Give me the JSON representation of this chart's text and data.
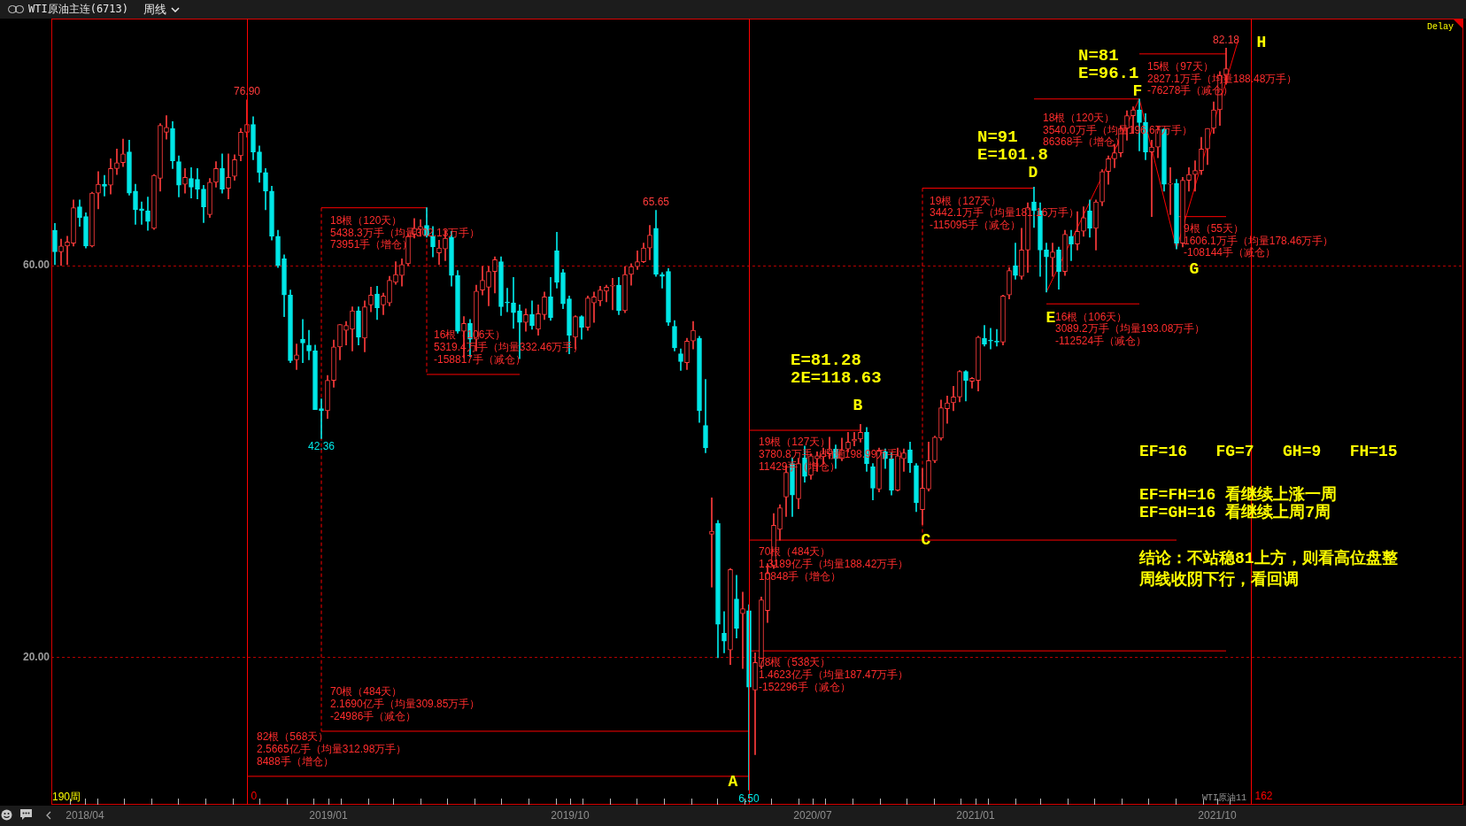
{
  "chart_data": {
    "type": "candlestick",
    "title": "WTI原油主连(6713)",
    "subtitle": "周线",
    "x": [
      "2018-02-26",
      "2018-03-05",
      "2018-03-12",
      "2018-03-19",
      "2018-03-26",
      "2018-04-02",
      "2018-04-09",
      "2018-04-16",
      "2018-04-23",
      "2018-04-30",
      "2018-05-07",
      "2018-05-14",
      "2018-05-21",
      "2018-05-28",
      "2018-06-04",
      "2018-06-11",
      "2018-06-18",
      "2018-06-25",
      "2018-07-02",
      "2018-07-09",
      "2018-07-16",
      "2018-07-23",
      "2018-07-30",
      "2018-08-06",
      "2018-08-13",
      "2018-08-20",
      "2018-08-27",
      "2018-09-03",
      "2018-09-10",
      "2018-09-17",
      "2018-09-24",
      "2018-10-01",
      "2018-10-08",
      "2018-10-15",
      "2018-10-22",
      "2018-10-29",
      "2018-11-05",
      "2018-11-12",
      "2018-11-19",
      "2018-11-26",
      "2018-12-03",
      "2018-12-10",
      "2018-12-17",
      "2018-12-24",
      "2018-12-31",
      "2019-01-07",
      "2019-01-14",
      "2019-01-21",
      "2019-01-28",
      "2019-02-04",
      "2019-02-11",
      "2019-02-18",
      "2019-02-25",
      "2019-03-04",
      "2019-03-11",
      "2019-03-18",
      "2019-03-25",
      "2019-04-01",
      "2019-04-08",
      "2019-04-15",
      "2019-04-22",
      "2019-04-29",
      "2019-05-06",
      "2019-05-13",
      "2019-05-20",
      "2019-05-27",
      "2019-06-03",
      "2019-06-10",
      "2019-06-17",
      "2019-06-24",
      "2019-07-01",
      "2019-07-08",
      "2019-07-15",
      "2019-07-22",
      "2019-07-29",
      "2019-08-05",
      "2019-08-12",
      "2019-08-19",
      "2019-08-26",
      "2019-09-02",
      "2019-09-09",
      "2019-09-16",
      "2019-09-23",
      "2019-09-30",
      "2019-10-07",
      "2019-10-14",
      "2019-10-21",
      "2019-10-28",
      "2019-11-04",
      "2019-11-11",
      "2019-11-18",
      "2019-11-25",
      "2019-12-02",
      "2019-12-09",
      "2019-12-16",
      "2019-12-23",
      "2019-12-30",
      "2020-01-06",
      "2020-01-13",
      "2020-01-20",
      "2020-01-27",
      "2020-02-03",
      "2020-02-10",
      "2020-02-17",
      "2020-02-24",
      "2020-03-02",
      "2020-03-09",
      "2020-03-16",
      "2020-03-23",
      "2020-03-30",
      "2020-04-06",
      "2020-04-13",
      "2020-04-20",
      "2020-04-27",
      "2020-05-04",
      "2020-05-11",
      "2020-05-18",
      "2020-05-25",
      "2020-06-01",
      "2020-06-08",
      "2020-06-15",
      "2020-06-22",
      "2020-06-29",
      "2020-07-06",
      "2020-07-13",
      "2020-07-20",
      "2020-07-27",
      "2020-08-03",
      "2020-08-10",
      "2020-08-17",
      "2020-08-24",
      "2020-08-31",
      "2020-09-07",
      "2020-09-14",
      "2020-09-21",
      "2020-09-28",
      "2020-10-05",
      "2020-10-12",
      "2020-10-19",
      "2020-10-26",
      "2020-11-02",
      "2020-11-09",
      "2020-11-16",
      "2020-11-23",
      "2020-11-30",
      "2020-12-07",
      "2020-12-14",
      "2020-12-21",
      "2020-12-28",
      "2021-01-04",
      "2021-01-11",
      "2021-01-18",
      "2021-01-25",
      "2021-02-01",
      "2021-02-08",
      "2021-02-15",
      "2021-02-22",
      "2021-03-01",
      "2021-03-08",
      "2021-03-15",
      "2021-03-22",
      "2021-03-29",
      "2021-04-05",
      "2021-04-12",
      "2021-04-19",
      "2021-04-26",
      "2021-05-03",
      "2021-05-10",
      "2021-05-17",
      "2021-05-24",
      "2021-05-31",
      "2021-06-07",
      "2021-06-14",
      "2021-06-21",
      "2021-06-28",
      "2021-07-05",
      "2021-07-12",
      "2021-07-19",
      "2021-07-26",
      "2021-08-02",
      "2021-08-09",
      "2021-08-16",
      "2021-08-23",
      "2021-08-30",
      "2021-09-06",
      "2021-09-13",
      "2021-09-20",
      "2021-09-27",
      "2021-10-04",
      "2021-10-11"
    ],
    "ohlc": [
      [
        63.6,
        64.3,
        60.1,
        61.4
      ],
      [
        61.4,
        62.7,
        60.0,
        62.0
      ],
      [
        62.0,
        63.0,
        60.1,
        62.4
      ],
      [
        62.3,
        66.7,
        62.0,
        65.9
      ],
      [
        66.0,
        66.7,
        64.0,
        64.9
      ],
      [
        65.0,
        65.4,
        61.8,
        62.0
      ],
      [
        62.0,
        67.5,
        61.9,
        67.4
      ],
      [
        67.4,
        69.6,
        65.8,
        68.3
      ],
      [
        68.3,
        69.2,
        67.1,
        68.1
      ],
      [
        68.2,
        70.9,
        67.3,
        69.9
      ],
      [
        69.9,
        71.9,
        69.3,
        70.5
      ],
      [
        70.5,
        72.9,
        70.1,
        71.4
      ],
      [
        71.6,
        72.8,
        67.2,
        67.4
      ],
      [
        67.6,
        68.3,
        64.2,
        65.7
      ],
      [
        65.8,
        66.5,
        64.2,
        65.6
      ],
      [
        65.6,
        67.0,
        63.6,
        64.5
      ],
      [
        63.8,
        69.3,
        63.7,
        69.2
      ],
      [
        68.9,
        74.5,
        67.6,
        74.3
      ],
      [
        73.6,
        75.3,
        72.9,
        74.1
      ],
      [
        74.0,
        74.7,
        69.9,
        70.7
      ],
      [
        70.6,
        71.2,
        67.0,
        68.2
      ],
      [
        68.3,
        69.9,
        67.4,
        69.0
      ],
      [
        68.9,
        70.0,
        66.9,
        68.0
      ],
      [
        68.8,
        69.9,
        66.8,
        67.8
      ],
      [
        67.8,
        68.2,
        64.4,
        66.0
      ],
      [
        65.2,
        68.9,
        64.9,
        68.5
      ],
      [
        68.5,
        70.6,
        68.0,
        69.9
      ],
      [
        69.9,
        71.4,
        67.4,
        67.8
      ],
      [
        67.9,
        71.4,
        66.8,
        69.0
      ],
      [
        69.1,
        71.3,
        68.7,
        70.8
      ],
      [
        71.2,
        74.0,
        70.7,
        73.6
      ],
      [
        73.6,
        76.9,
        73.1,
        74.4
      ],
      [
        74.4,
        75.2,
        70.8,
        71.6
      ],
      [
        71.6,
        72.2,
        68.5,
        69.5
      ],
      [
        69.5,
        69.9,
        65.7,
        67.6
      ],
      [
        67.6,
        68.1,
        62.6,
        63.0
      ],
      [
        63.0,
        63.6,
        59.8,
        60.0
      ],
      [
        60.7,
        61.1,
        54.8,
        57.0
      ],
      [
        57.0,
        57.5,
        50.1,
        50.3
      ],
      [
        50.4,
        52.0,
        49.4,
        50.9
      ],
      [
        52.5,
        54.5,
        50.1,
        52.1
      ],
      [
        51.9,
        53.4,
        50.4,
        51.3
      ],
      [
        51.3,
        51.9,
        45.3,
        45.3
      ],
      [
        45.4,
        46.4,
        42.36,
        45.2
      ],
      [
        45.2,
        48.8,
        44.4,
        48.3
      ],
      [
        48.3,
        52.4,
        47.6,
        51.7
      ],
      [
        51.7,
        54.0,
        50.4,
        54.0
      ],
      [
        53.4,
        54.3,
        51.9,
        53.9
      ],
      [
        53.5,
        55.8,
        51.3,
        55.4
      ],
      [
        55.4,
        55.8,
        51.9,
        52.7
      ],
      [
        52.6,
        56.4,
        51.2,
        55.8
      ],
      [
        56.0,
        57.8,
        55.3,
        57.0
      ],
      [
        57.1,
        57.9,
        54.5,
        55.7
      ],
      [
        56.0,
        57.2,
        55.0,
        56.9
      ],
      [
        56.2,
        58.9,
        55.9,
        58.5
      ],
      [
        58.3,
        60.4,
        58.1,
        59.1
      ],
      [
        59.0,
        60.7,
        57.9,
        60.1
      ],
      [
        60.2,
        63.2,
        60.0,
        63.0
      ],
      [
        63.2,
        64.8,
        62.8,
        63.8
      ],
      [
        63.7,
        64.7,
        63.0,
        64.0
      ],
      [
        64.1,
        65.9,
        62.9,
        63.1
      ],
      [
        63.0,
        64.0,
        60.9,
        61.9
      ],
      [
        61.3,
        62.6,
        60.1,
        61.8
      ],
      [
        61.7,
        63.6,
        60.5,
        62.8
      ],
      [
        62.9,
        63.5,
        57.9,
        59.0
      ],
      [
        59.0,
        59.5,
        53.1,
        53.3
      ],
      [
        53.3,
        54.8,
        50.6,
        54.1
      ],
      [
        54.1,
        54.5,
        50.7,
        52.5
      ],
      [
        52.5,
        58.0,
        51.3,
        57.4
      ],
      [
        57.5,
        59.9,
        57.0,
        58.5
      ],
      [
        57.8,
        59.9,
        55.9,
        59.4
      ],
      [
        59.4,
        60.9,
        57.2,
        60.6
      ],
      [
        60.4,
        60.9,
        54.9,
        55.8
      ],
      [
        56.3,
        57.7,
        55.3,
        56.2
      ],
      [
        56.2,
        58.8,
        53.6,
        55.2
      ],
      [
        55.4,
        56.0,
        50.5,
        54.2
      ],
      [
        54.2,
        55.6,
        53.3,
        55.0
      ],
      [
        55.0,
        56.4,
        53.5,
        53.9
      ],
      [
        53.5,
        56.0,
        52.9,
        55.1
      ],
      [
        55.0,
        57.3,
        54.5,
        56.8
      ],
      [
        56.8,
        58.8,
        54.4,
        54.7
      ],
      [
        61.5,
        63.4,
        57.7,
        58.3
      ],
      [
        59.3,
        59.6,
        55.6,
        56.1
      ],
      [
        56.6,
        56.9,
        51.0,
        52.9
      ],
      [
        52.7,
        54.9,
        51.5,
        54.8
      ],
      [
        54.8,
        54.9,
        52.5,
        53.7
      ],
      [
        53.7,
        56.9,
        53.4,
        56.7
      ],
      [
        56.2,
        57.3,
        54.2,
        56.8
      ],
      [
        56.4,
        57.9,
        55.9,
        57.5
      ],
      [
        57.4,
        58.0,
        56.3,
        57.8
      ],
      [
        57.9,
        58.7,
        55.5,
        58.0
      ],
      [
        58.0,
        58.8,
        55.0,
        55.4
      ],
      [
        55.4,
        59.9,
        55.2,
        59.1
      ],
      [
        59.1,
        60.2,
        58.0,
        59.9
      ],
      [
        59.9,
        61.5,
        59.6,
        60.4
      ],
      [
        60.4,
        62.3,
        60.3,
        61.8
      ],
      [
        61.8,
        64.1,
        60.6,
        63.1
      ],
      [
        63.8,
        65.65,
        58.9,
        59.1
      ],
      [
        59.1,
        59.3,
        57.7,
        58.9
      ],
      [
        59.4,
        59.7,
        53.9,
        54.2
      ],
      [
        53.8,
        54.4,
        51.3,
        51.6
      ],
      [
        51.0,
        51.5,
        49.3,
        50.2
      ],
      [
        50.1,
        52.6,
        49.4,
        52.3
      ],
      [
        52.3,
        54.3,
        51.5,
        53.4
      ],
      [
        52.6,
        52.8,
        44.0,
        45.2
      ],
      [
        43.7,
        48.4,
        40.9,
        41.4
      ],
      [
        32.6,
        36.3,
        27.2,
        32.9
      ],
      [
        33.7,
        34.0,
        20.0,
        23.4
      ],
      [
        22.5,
        24.7,
        20.5,
        21.7
      ],
      [
        20.8,
        29.1,
        19.3,
        29.0
      ],
      [
        26.0,
        28.4,
        22.0,
        23.0
      ],
      [
        24.5,
        26.7,
        18.9,
        25.0
      ],
      [
        24.8,
        25.4,
        6.5,
        17.0
      ],
      [
        16.7,
        20.5,
        10.1,
        19.5
      ],
      [
        19.1,
        26.2,
        18.9,
        25.9
      ],
      [
        24.8,
        29.6,
        23.6,
        28.6
      ],
      [
        29.4,
        34.7,
        29.1,
        33.5
      ],
      [
        33.1,
        35.6,
        32.0,
        35.3
      ],
      [
        36.4,
        39.6,
        34.4,
        38.9
      ],
      [
        39.8,
        40.4,
        34.4,
        36.6
      ],
      [
        36.2,
        40.3,
        35.2,
        39.8
      ],
      [
        40.4,
        41.6,
        37.9,
        38.5
      ],
      [
        38.6,
        40.8,
        38.2,
        40.6
      ],
      [
        40.3,
        41.0,
        39.0,
        40.6
      ],
      [
        40.5,
        41.4,
        39.7,
        40.8
      ],
      [
        40.8,
        42.5,
        40.3,
        41.3
      ],
      [
        41.3,
        41.7,
        39.3,
        40.3
      ],
      [
        40.3,
        42.4,
        40.1,
        41.2
      ],
      [
        41.3,
        43.0,
        41.0,
        42.0
      ],
      [
        42.1,
        43.0,
        41.6,
        42.3
      ],
      [
        42.3,
        43.8,
        42.0,
        43.0
      ],
      [
        43.0,
        43.5,
        39.0,
        39.8
      ],
      [
        39.5,
        39.8,
        36.1,
        37.3
      ],
      [
        37.2,
        41.4,
        36.9,
        41.1
      ],
      [
        41.0,
        41.3,
        39.3,
        40.3
      ],
      [
        40.3,
        40.9,
        36.6,
        37.1
      ],
      [
        37.1,
        41.4,
        37.0,
        40.6
      ],
      [
        40.3,
        41.3,
        39.0,
        40.9
      ],
      [
        41.2,
        42.0,
        38.9,
        39.9
      ],
      [
        39.6,
        39.8,
        34.9,
        35.8
      ],
      [
        35.1,
        39.3,
        33.6,
        37.3
      ],
      [
        37.2,
        42.0,
        37.0,
        40.1
      ],
      [
        40.1,
        42.6,
        39.9,
        42.5
      ],
      [
        42.4,
        46.3,
        42.2,
        45.5
      ],
      [
        45.4,
        46.7,
        43.9,
        46.0
      ],
      [
        46.0,
        47.7,
        45.2,
        46.6
      ],
      [
        46.6,
        49.3,
        46.1,
        49.2
      ],
      [
        49.2,
        49.3,
        46.2,
        48.3
      ],
      [
        48.2,
        48.6,
        47.5,
        48.5
      ],
      [
        48.3,
        52.8,
        47.2,
        52.7
      ],
      [
        52.6,
        53.9,
        51.8,
        52.0
      ],
      [
        52.4,
        53.6,
        51.5,
        52.3
      ],
      [
        52.3,
        53.5,
        51.8,
        52.2
      ],
      [
        52.2,
        57.0,
        51.9,
        56.9
      ],
      [
        57.0,
        59.8,
        56.6,
        59.5
      ],
      [
        60.0,
        62.3,
        58.6,
        59.0
      ],
      [
        58.9,
        63.8,
        58.6,
        61.6
      ],
      [
        61.6,
        66.4,
        59.3,
        65.9
      ],
      [
        66.5,
        68.0,
        63.9,
        65.6
      ],
      [
        65.6,
        66.4,
        58.9,
        61.6
      ],
      [
        61.6,
        62.3,
        57.3,
        60.9
      ],
      [
        60.8,
        62.3,
        58.9,
        61.4
      ],
      [
        61.6,
        61.9,
        57.6,
        59.4
      ],
      [
        59.4,
        63.6,
        59.0,
        63.2
      ],
      [
        63.0,
        63.6,
        60.5,
        62.2
      ],
      [
        62.2,
        65.5,
        61.6,
        63.5
      ],
      [
        63.5,
        66.0,
        63.0,
        64.9
      ],
      [
        65.6,
        66.7,
        62.9,
        63.8
      ],
      [
        63.8,
        66.7,
        61.6,
        66.5
      ],
      [
        66.5,
        69.8,
        66.1,
        69.6
      ],
      [
        69.6,
        71.2,
        68.3,
        70.9
      ],
      [
        70.9,
        72.4,
        70.0,
        71.5
      ],
      [
        71.5,
        74.2,
        71.1,
        74.0
      ],
      [
        74.0,
        75.8,
        72.8,
        75.3
      ],
      [
        75.3,
        76.2,
        73.5,
        75.9
      ],
      [
        75.9,
        77.0,
        71.7,
        74.6
      ],
      [
        74.6,
        75.5,
        70.8,
        71.6
      ],
      [
        71.6,
        72.8,
        65.0,
        72.1
      ],
      [
        72.1,
        74.2,
        71.0,
        73.9
      ],
      [
        73.9,
        74.0,
        67.6,
        68.3
      ],
      [
        68.3,
        70.0,
        65.2,
        68.4
      ],
      [
        68.4,
        68.8,
        61.7,
        62.3
      ],
      [
        62.3,
        69.0,
        61.9,
        68.7
      ],
      [
        68.7,
        70.0,
        67.6,
        69.3
      ],
      [
        69.3,
        70.7,
        67.6,
        69.7
      ],
      [
        69.7,
        73.1,
        69.3,
        71.9
      ],
      [
        71.9,
        74.0,
        70.3,
        74.0
      ],
      [
        74.0,
        76.7,
        73.5,
        75.9
      ],
      [
        75.9,
        79.8,
        74.3,
        79.4
      ],
      [
        79.4,
        82.18,
        78.5,
        80.1
      ]
    ],
    "xlim": [
      "2018-02-22",
      "2022-07-06"
    ],
    "xticks": [
      {
        "value": "2018-03-15",
        "label": null
      },
      {
        "value": "2018-04-01",
        "label": "2018/04"
      },
      {
        "value": "2018-04-15",
        "label": null
      },
      {
        "value": "2018-05-15",
        "label": null
      },
      {
        "value": "2018-06-15",
        "label": null
      },
      {
        "value": "2018-07-15",
        "label": null
      },
      {
        "value": "2018-08-15",
        "label": null
      },
      {
        "value": "2018-09-15",
        "label": null
      },
      {
        "value": "2018-10-15",
        "label": null
      },
      {
        "value": "2018-11-15",
        "label": null
      },
      {
        "value": "2018-12-15",
        "label": null
      },
      {
        "value": "2019-01-01",
        "label": "2019/01"
      },
      {
        "value": "2019-01-15",
        "label": null
      },
      {
        "value": "2019-02-15",
        "label": null
      },
      {
        "value": "2019-03-15",
        "label": null
      },
      {
        "value": "2019-04-15",
        "label": null
      },
      {
        "value": "2019-05-15",
        "label": null
      },
      {
        "value": "2019-06-15",
        "label": null
      },
      {
        "value": "2019-07-15",
        "label": null
      },
      {
        "value": "2019-08-15",
        "label": null
      },
      {
        "value": "2019-09-15",
        "label": null
      },
      {
        "value": "2019-10-01",
        "label": "2019/10"
      },
      {
        "value": "2019-10-15",
        "label": null
      },
      {
        "value": "2019-11-15",
        "label": null
      },
      {
        "value": "2019-12-15",
        "label": null
      },
      {
        "value": "2020-01-15",
        "label": null
      },
      {
        "value": "2020-02-15",
        "label": null
      },
      {
        "value": "2020-03-15",
        "label": null
      },
      {
        "value": "2020-04-15",
        "label": null
      },
      {
        "value": "2020-05-15",
        "label": null
      },
      {
        "value": "2020-06-15",
        "label": null
      },
      {
        "value": "2020-07-01",
        "label": "2020/07"
      },
      {
        "value": "2020-07-15",
        "label": null
      },
      {
        "value": "2020-08-15",
        "label": null
      },
      {
        "value": "2020-09-15",
        "label": null
      },
      {
        "value": "2020-10-15",
        "label": null
      },
      {
        "value": "2020-11-15",
        "label": null
      },
      {
        "value": "2020-12-15",
        "label": null
      },
      {
        "value": "2021-01-01",
        "label": "2021/01"
      },
      {
        "value": "2021-01-15",
        "label": null
      },
      {
        "value": "2021-02-15",
        "label": null
      },
      {
        "value": "2021-03-15",
        "label": null
      },
      {
        "value": "2021-04-15",
        "label": null
      },
      {
        "value": "2021-05-15",
        "label": null
      },
      {
        "value": "2021-06-15",
        "label": null
      },
      {
        "value": "2021-07-15",
        "label": null
      },
      {
        "value": "2021-08-15",
        "label": null
      },
      {
        "value": "2021-09-15",
        "label": null
      },
      {
        "value": "2021-10-01",
        "label": "2021/10"
      },
      {
        "value": "2021-10-15",
        "label": null
      }
    ],
    "ylim": [
      5.0,
      85.2
    ],
    "yticks": [
      {
        "value": 60,
        "label": "60.00"
      },
      {
        "value": 20,
        "label": "20.00"
      }
    ],
    "grid": "y",
    "marker": "none",
    "series": [
      {
        "type": "line",
        "color": "#ff0000",
        "x": [
          "2018-12-24",
          "2019-04-22"
        ],
        "values": [
          65.9,
          65.9
        ]
      },
      {
        "type": "line",
        "color": "#ff0000",
        "x": [
          "2019-04-22",
          "2019-08-05"
        ],
        "values": [
          48.9,
          48.9
        ]
      },
      {
        "type": "line",
        "color": "#ff0000",
        "x": [
          "2018-12-24",
          "2020-04-20"
        ],
        "values": [
          12.5,
          12.5
        ]
      },
      {
        "type": "line",
        "color": "#ff0000",
        "x": [
          "2018-10-01",
          "2020-04-20"
        ],
        "values": [
          7.9,
          7.9
        ]
      },
      {
        "type": "line",
        "color": "#ff0000",
        "x": [
          "2020-04-20",
          "2020-08-24"
        ],
        "values": [
          43.2,
          43.2
        ]
      },
      {
        "type": "line",
        "color": "#ff0000",
        "x": [
          "2020-04-20",
          "2021-08-16"
        ],
        "values": [
          32.0,
          32.0
        ]
      },
      {
        "type": "line",
        "color": "#ff0000",
        "x": [
          "2020-04-20",
          "2021-10-11"
        ],
        "values": [
          20.7,
          20.7
        ]
      },
      {
        "type": "line",
        "color": "#ff0000",
        "x": [
          "2020-11-02",
          "2021-03-08"
        ],
        "values": [
          67.9,
          67.9
        ]
      },
      {
        "type": "line",
        "color": "#ff0000",
        "x": [
          "2021-03-08",
          "2021-07-05"
        ],
        "values": [
          77.0,
          77.0
        ]
      },
      {
        "type": "line",
        "color": "#ff0000",
        "x": [
          "2021-03-22",
          "2021-07-05"
        ],
        "values": [
          56.1,
          56.1
        ]
      },
      {
        "type": "line",
        "color": "#ff0000",
        "x": [
          "2021-07-05",
          "2021-10-11"
        ],
        "values": [
          81.6,
          81.6
        ]
      },
      {
        "type": "line",
        "color": "#ff0000",
        "x": [
          "2021-08-16",
          "2021-10-11"
        ],
        "values": [
          65.0,
          65.0
        ]
      },
      {
        "type": "line",
        "color": "#ff0000",
        "line_style": "dashed",
        "x": [
          "2018-12-24",
          "2018-12-24"
        ],
        "values": [
          65.9,
          12.5
        ]
      },
      {
        "type": "line",
        "color": "#ff0000",
        "line_style": "dashed",
        "x": [
          "2019-04-22",
          "2019-04-22"
        ],
        "values": [
          65.9,
          48.9
        ]
      },
      {
        "type": "line",
        "color": "#ff0000",
        "line_style": "dashed",
        "x": [
          "2020-11-02",
          "2020-11-02"
        ],
        "values": [
          67.9,
          32.0
        ]
      },
      {
        "type": "line",
        "color": "#ff0000",
        "x": [
          "2021-03-22",
          "2021-07-05",
          "2021-08-16",
          "2021-10-25"
        ],
        "values": [
          57.3,
          77.0,
          61.7,
          83.1
        ]
      }
    ],
    "ref_lines": [
      {
        "axis": "x",
        "value": "2018-10-01",
        "label": "0",
        "color": "#ff0000"
      },
      {
        "axis": "x",
        "value": "2020-04-20",
        "color": "#ff0000"
      },
      {
        "axis": "x",
        "value": "2021-11-08",
        "label": "162",
        "color": "#ff0000"
      }
    ],
    "annotations": [
      {
        "text": "76.90",
        "x": "2018-10-01",
        "y": 76.9
      },
      {
        "text": "42.36",
        "x": "2018-12-24",
        "y": 42.36
      },
      {
        "text": "65.65",
        "x": "2020-01-06",
        "y": 65.65
      },
      {
        "text": "6.50",
        "x": "2020-04-20",
        "y": 6.5
      },
      {
        "text": "82.18",
        "x": "2021-10-11",
        "y": 82.18
      },
      {
        "text": "A",
        "x": "2020-04-20",
        "y": 6.5
      },
      {
        "text": "B",
        "x": "2020-08-24",
        "y": 43.8
      },
      {
        "text": "C",
        "x": "2020-11-02",
        "y": 33.6
      },
      {
        "text": "D",
        "x": "2021-03-08",
        "y": 68.0
      },
      {
        "text": "E",
        "x": "2021-03-22",
        "y": 57.3
      },
      {
        "text": "F",
        "x": "2021-07-05",
        "y": 77.0
      },
      {
        "text": "G",
        "x": "2021-08-16",
        "y": 61.7
      },
      {
        "text": "H",
        "x": "2021-10-11",
        "y": 82.18
      },
      {
        "text": "18根（120天）\n5438.3万手（均量302.13万手）\n73951手（增仓）",
        "x": "2018-12-24",
        "y": 65.9
      },
      {
        "text": "16根（106天）\n5319.4万手（均量332.46万手）\n-158817手（减仓）",
        "x": "2019-04-22",
        "y": 48.9
      },
      {
        "text": "70根（484天）\n2.1690亿手（均量309.85万手）\n-24986手（减仓）",
        "x": "2018-12-24",
        "y": 12.5
      },
      {
        "text": "82根（568天）\n2.5665亿手（均量312.98万手）\n8488手（增仓）",
        "x": "2018-10-01",
        "y": 7.9
      },
      {
        "text": "19根（127天）\n3780.8万手（均量198.99万手）\n11429手（增仓）",
        "x": "2020-04-20",
        "y": 43.2
      },
      {
        "text": "70根（484天）\n1.3189亿手（均量188.42万手）\n10848手（增仓）",
        "x": "2020-04-20",
        "y": 32.0
      },
      {
        "text": "78根（538天）\n1.4623亿手（均量187.47万手）\n-152296手（减仓）",
        "x": "2020-04-20",
        "y": 20.7
      },
      {
        "text": "19根（127天）\n3442.1万手（均量181.16万手）\n-115095手（减仓）",
        "x": "2020-11-02",
        "y": 67.9
      },
      {
        "text": "18根（120天）\n3540.0万手（均量196.67万手）\n86368手（增仓）",
        "x": "2021-03-08",
        "y": 77.0
      },
      {
        "text": "16根（106天）\n3089.2万手（均量193.08万手）\n-112524手（减仓）",
        "x": "2021-03-22",
        "y": 56.1
      },
      {
        "text": "15根（97天）\n2827.1万手（均量188.48万手）\n-76278手（减仓）",
        "x": "2021-07-05",
        "y": 81.6
      },
      {
        "text": "9根（55天）\n1606.1万手（均量178.46万手）\n-108144手（减仓）",
        "x": "2021-08-16",
        "y": 65.0
      },
      "N=91\nE=101.8",
      "N=81\nE=96.1",
      "E=81.28\n2E=118.63",
      "EF=16   FG=7   GH=9   FH=15",
      "EF=FH=16 看继续上涨一周",
      "EF=GH=16 看继续上周7周",
      "结论：不站稳81上方，则看高位盘整",
      "周线收阴下行，看回调",
      "190周",
      "Delay",
      "WTI原油11"
    ]
  }
}
